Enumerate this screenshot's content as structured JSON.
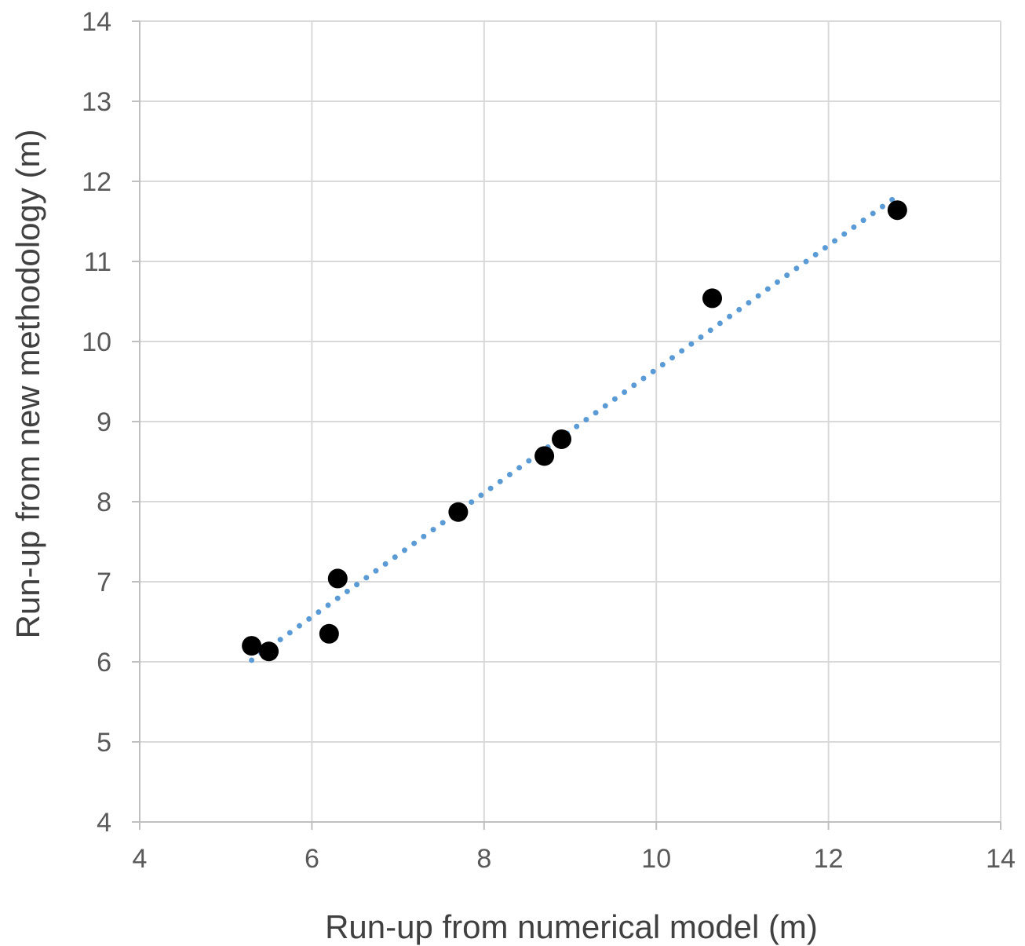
{
  "chart_data": {
    "type": "scatter",
    "title": "",
    "xlabel": "Run-up from numerical model (m)",
    "ylabel": "Run-up from new methodology (m)",
    "xlim": [
      4,
      14
    ],
    "ylim": [
      4,
      14
    ],
    "x_ticks": [
      4,
      6,
      8,
      10,
      12,
      14
    ],
    "y_ticks": [
      4,
      5,
      6,
      7,
      8,
      9,
      10,
      11,
      12,
      13,
      14
    ],
    "grid": true,
    "legend": "none",
    "series": [
      {
        "marker_color": "#000000",
        "points": [
          {
            "x": 5.3,
            "y": 6.2
          },
          {
            "x": 5.5,
            "y": 6.13
          },
          {
            "x": 6.2,
            "y": 6.35
          },
          {
            "x": 6.3,
            "y": 7.04
          },
          {
            "x": 7.7,
            "y": 7.87
          },
          {
            "x": 8.7,
            "y": 8.57
          },
          {
            "x": 8.9,
            "y": 8.78
          },
          {
            "x": 10.65,
            "y": 10.54
          },
          {
            "x": 12.8,
            "y": 11.64
          }
        ]
      }
    ],
    "trendline": {
      "style": "dotted",
      "color": "#5B9BD5",
      "points": [
        {
          "x": 5.3,
          "y": 6.02
        },
        {
          "x": 12.75,
          "y": 11.78
        }
      ]
    },
    "colors": {
      "grid": "#D9D9D9",
      "axis": "#BFBFBF",
      "tick_text": "#595959",
      "title_text": "#404040"
    }
  }
}
